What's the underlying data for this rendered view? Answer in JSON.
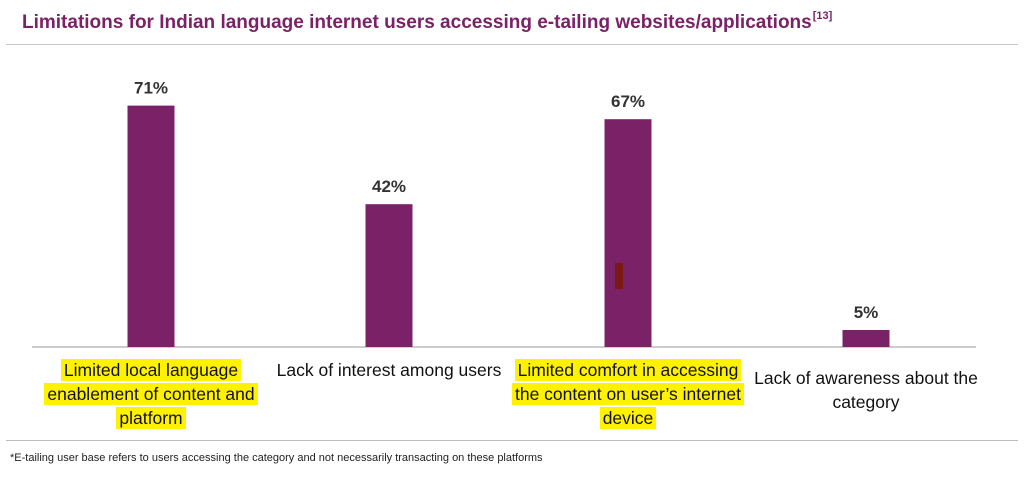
{
  "title": "Limitations for Indian language internet users accessing e-tailing websites/applications",
  "title_ref": "[13]",
  "footnote": "*E-tailing user base refers to users accessing the category and not necessarily transacting on these platforms",
  "colors": {
    "bar": "#7b2168",
    "highlight": "#fff200",
    "title": "#7b2168",
    "marker": "#7a1a12"
  },
  "chart_data": {
    "type": "bar",
    "categories": [
      "Limited local language enablement of content and platform",
      "Lack of interest among users",
      "Limited comfort in accessing the content on user’s internet device",
      "Lack of awareness about the category"
    ],
    "values": [
      71,
      42,
      67,
      5
    ],
    "value_labels": [
      "71%",
      "42%",
      "67%",
      "5%"
    ],
    "highlighted": [
      true,
      false,
      true,
      false
    ],
    "ylim": [
      0,
      80
    ],
    "grid": false,
    "legend": "none",
    "xlabel": "",
    "ylabel": ""
  }
}
